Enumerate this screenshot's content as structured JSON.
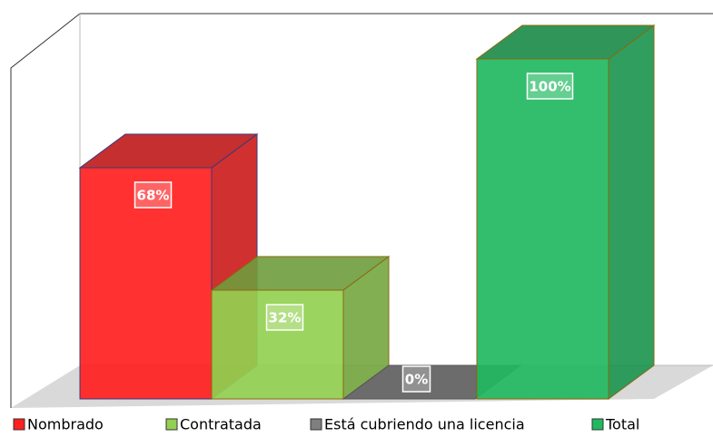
{
  "chart_data": {
    "type": "bar",
    "categories": [
      "Nombrado",
      "Contratada",
      "Está cubriendo una licencia",
      "Total"
    ],
    "values": [
      68,
      32,
      0,
      100
    ],
    "value_labels": [
      "68%",
      "32%",
      "0%",
      "100%"
    ],
    "colors": [
      "#ff2020",
      "#92d050",
      "#7f7f7f",
      "#21b85f"
    ],
    "ylim": [
      0,
      100
    ],
    "legend": "bottom"
  }
}
